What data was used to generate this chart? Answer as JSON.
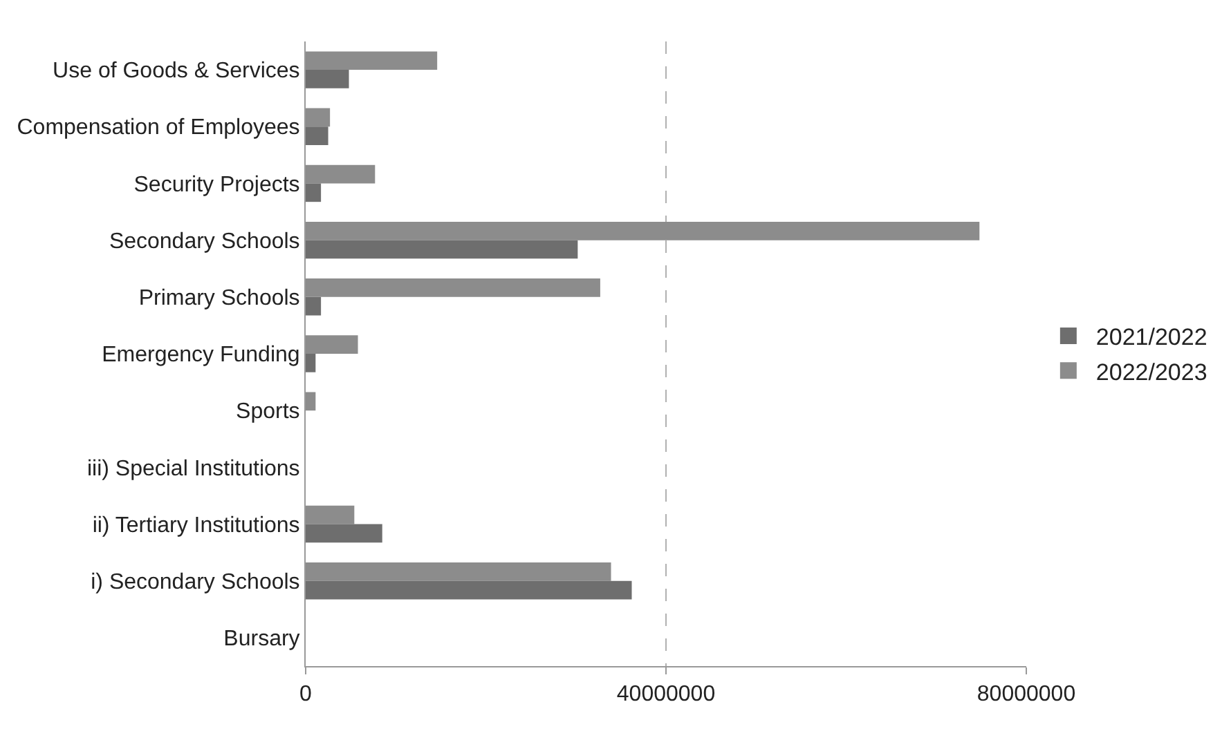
{
  "chart_data": {
    "type": "bar",
    "orientation": "horizontal",
    "categories": [
      "Use of Goods & Services",
      "Compensation of Employees",
      "Security Projects",
      "Secondary Schools",
      "Primary Schools",
      "Emergency Funding",
      "Sports",
      "iii) Special Institutions",
      "ii) Tertiary Institutions",
      "i) Secondary Schools",
      "Bursary"
    ],
    "series": [
      {
        "name": "2021/2022",
        "color": "#6e6e6e",
        "values": [
          4800000,
          2500000,
          1700000,
          30200000,
          1700000,
          1100000,
          0,
          0,
          8500000,
          36200000,
          0
        ]
      },
      {
        "name": "2022/2023",
        "color": "#8c8c8c",
        "values": [
          14600000,
          2700000,
          7700000,
          74800000,
          32700000,
          5800000,
          1100000,
          0,
          5400000,
          33900000,
          0
        ]
      }
    ],
    "xlim": [
      0,
      80000000
    ],
    "xticks": [
      0,
      40000000,
      80000000
    ],
    "grid": "x",
    "legend": "right"
  }
}
